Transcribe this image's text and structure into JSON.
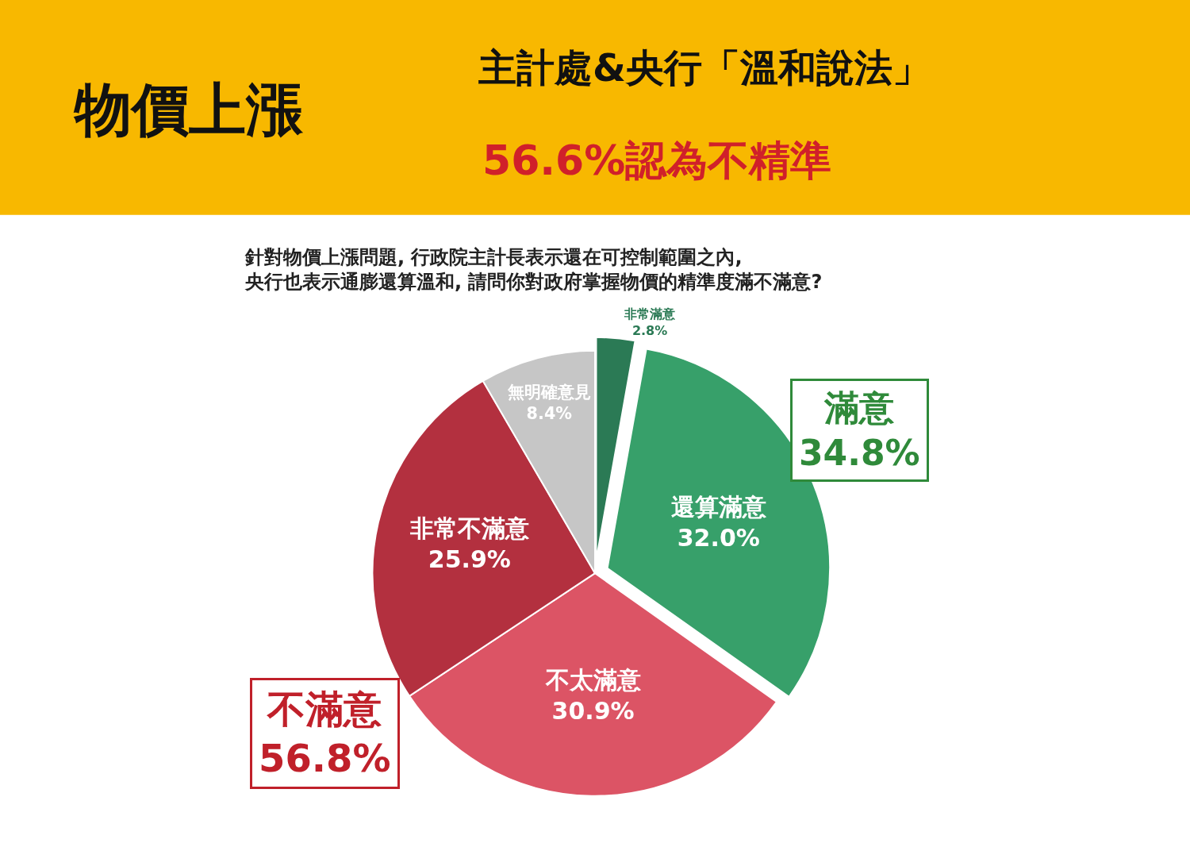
{
  "chart_data": {
    "type": "pie",
    "title": "物價上漲",
    "subtitle": "主計處&央行「溫和說法」",
    "categories": [
      "非常滿意",
      "還算滿意",
      "不太滿意",
      "非常不滿意",
      "無明確意見"
    ],
    "values": [
      2.8,
      32.0,
      30.9,
      25.9,
      8.4
    ],
    "colors": [
      "#2b7a55",
      "#37a06a",
      "#dc5465",
      "#b3303f",
      "#c6c6c6"
    ],
    "value_labels": [
      "2.8%",
      "32.0%",
      "30.9%",
      "25.9%",
      "8.4%"
    ],
    "legend": false,
    "annotations": [
      "56.6%認為不精準",
      "針對物價上漲問題, 行政院主計長表示還在可控制範圍之內,\n央行也表示通膨還算溫和, 請問你對政府掌握物價的精準度滿不滿意?",
      "滿意\n34.8%",
      "不滿意\n56.8%"
    ]
  }
}
